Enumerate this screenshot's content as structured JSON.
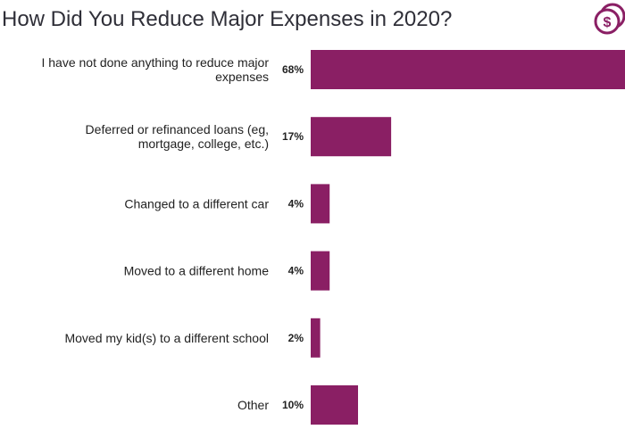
{
  "chart_data": {
    "type": "bar",
    "orientation": "horizontal",
    "title": "How Did You Reduce Major Expenses in 2020?",
    "categories": [
      [
        "I have not done anything to reduce major",
        "expenses"
      ],
      [
        "Deferred or refinanced loans (eg,",
        "mortgage, college, etc.)"
      ],
      [
        "Changed to a different car"
      ],
      [
        "Moved to a different home"
      ],
      [
        "Moved my kid(s) to a different school"
      ],
      [
        "Other"
      ]
    ],
    "values": [
      68,
      17,
      4,
      4,
      2,
      10
    ],
    "value_labels": [
      "68%",
      "17%",
      "4%",
      "4%",
      "2%",
      "10%"
    ],
    "unit": "%",
    "bar_color": "#8a1f64",
    "grid": false,
    "legend": "none"
  },
  "logo": {
    "icon": "dollar-coin-icon",
    "glyph": "$",
    "color": "#8a1f64"
  }
}
